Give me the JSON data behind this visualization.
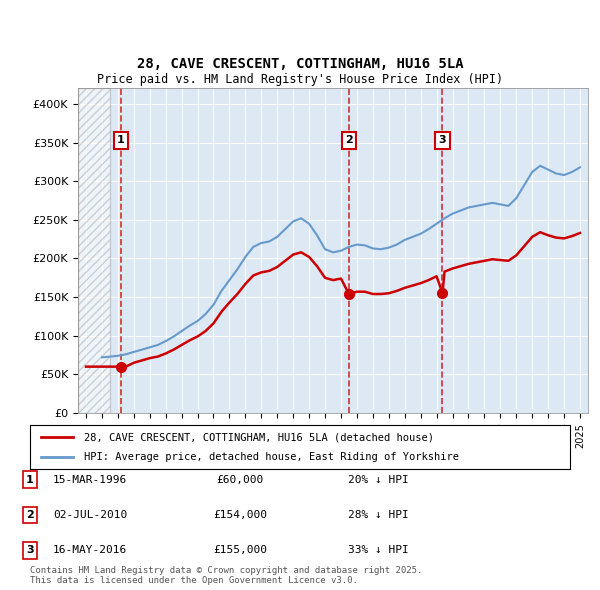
{
  "title": "28, CAVE CRESCENT, COTTINGHAM, HU16 5LA",
  "subtitle": "Price paid vs. HM Land Registry's House Price Index (HPI)",
  "ylabel": "",
  "xlabel": "",
  "background_color": "#dce9f5",
  "hatch_color": "#c0c0c0",
  "ylim": [
    0,
    420000
  ],
  "yticks": [
    0,
    50000,
    100000,
    150000,
    200000,
    250000,
    300000,
    350000,
    400000
  ],
  "ytick_labels": [
    "£0",
    "£50K",
    "£100K",
    "£150K",
    "£200K",
    "£250K",
    "£300K",
    "£350K",
    "£400K"
  ],
  "xlim_start": 1993.5,
  "xlim_end": 2025.5,
  "hatch_end": 1995.5,
  "sale_dates": [
    1996.2,
    2010.5,
    2016.37
  ],
  "sale_prices": [
    60000,
    154000,
    155000
  ],
  "sale_labels": [
    "1",
    "2",
    "3"
  ],
  "legend_line1": "28, CAVE CRESCENT, COTTINGHAM, HU16 5LA (detached house)",
  "legend_line2": "HPI: Average price, detached house, East Riding of Yorkshire",
  "table_data": [
    [
      "1",
      "15-MAR-1996",
      "£60,000",
      "20% ↓ HPI"
    ],
    [
      "2",
      "02-JUL-2010",
      "£154,000",
      "28% ↓ HPI"
    ],
    [
      "3",
      "16-MAY-2016",
      "£155,000",
      "33% ↓ HPI"
    ]
  ],
  "footer": "Contains HM Land Registry data © Crown copyright and database right 2025.\nThis data is licensed under the Open Government Licence v3.0.",
  "red_line_color": "#cc0000",
  "blue_line_color": "#6699cc",
  "hpi_data_x": [
    1995.0,
    1995.5,
    1996.0,
    1996.5,
    1997.0,
    1997.5,
    1998.0,
    1998.5,
    1999.0,
    1999.5,
    2000.0,
    2000.5,
    2001.0,
    2001.5,
    2002.0,
    2002.5,
    2003.0,
    2003.5,
    2004.0,
    2004.5,
    2005.0,
    2005.5,
    2006.0,
    2006.5,
    2007.0,
    2007.5,
    2008.0,
    2008.5,
    2009.0,
    2009.5,
    2010.0,
    2010.5,
    2011.0,
    2011.5,
    2012.0,
    2012.5,
    2013.0,
    2013.5,
    2014.0,
    2014.5,
    2015.0,
    2015.5,
    2016.0,
    2016.5,
    2017.0,
    2017.5,
    2018.0,
    2018.5,
    2019.0,
    2019.5,
    2020.0,
    2020.5,
    2021.0,
    2021.5,
    2022.0,
    2022.5,
    2023.0,
    2023.5,
    2024.0,
    2024.5,
    2025.0
  ],
  "hpi_data_y": [
    72000,
    73000,
    74000,
    76000,
    79000,
    82000,
    85000,
    88000,
    93000,
    99000,
    106000,
    113000,
    119000,
    128000,
    140000,
    158000,
    172000,
    186000,
    202000,
    215000,
    220000,
    222000,
    228000,
    238000,
    248000,
    252000,
    245000,
    230000,
    212000,
    208000,
    210000,
    215000,
    218000,
    217000,
    213000,
    212000,
    214000,
    218000,
    224000,
    228000,
    232000,
    238000,
    245000,
    252000,
    258000,
    262000,
    266000,
    268000,
    270000,
    272000,
    270000,
    268000,
    278000,
    295000,
    312000,
    320000,
    315000,
    310000,
    308000,
    312000,
    318000
  ],
  "price_paid_x": [
    1994.0,
    1996.2,
    1996.5,
    1997.0,
    1997.5,
    1998.0,
    1998.5,
    1999.0,
    1999.5,
    2000.0,
    2000.5,
    2001.0,
    2001.5,
    2002.0,
    2002.5,
    2003.0,
    2003.5,
    2004.0,
    2004.5,
    2005.0,
    2005.5,
    2006.0,
    2006.5,
    2007.0,
    2007.5,
    2008.0,
    2008.5,
    2009.0,
    2009.5,
    2010.0,
    2010.5,
    2011.0,
    2011.5,
    2012.0,
    2012.5,
    2013.0,
    2013.5,
    2014.0,
    2014.5,
    2015.0,
    2015.5,
    2016.0,
    2016.37,
    2016.5,
    2017.0,
    2017.5,
    2018.0,
    2018.5,
    2019.0,
    2019.5,
    2020.0,
    2020.5,
    2021.0,
    2021.5,
    2022.0,
    2022.5,
    2023.0,
    2023.5,
    2024.0,
    2024.5,
    2025.0
  ],
  "price_paid_y": [
    60000,
    60000,
    60000,
    65000,
    68000,
    71000,
    73000,
    77000,
    82000,
    88000,
    94000,
    99000,
    106000,
    116000,
    131000,
    143000,
    154000,
    167000,
    178000,
    182000,
    184000,
    189000,
    197000,
    205000,
    208000,
    202000,
    190000,
    175000,
    172000,
    174000,
    154000,
    157000,
    157000,
    154000,
    154000,
    155000,
    158000,
    162000,
    165000,
    168000,
    172000,
    177000,
    155000,
    183000,
    187000,
    190000,
    193000,
    195000,
    197000,
    199000,
    198000,
    197000,
    204000,
    216000,
    228000,
    234000,
    230000,
    227000,
    226000,
    229000,
    233000
  ]
}
